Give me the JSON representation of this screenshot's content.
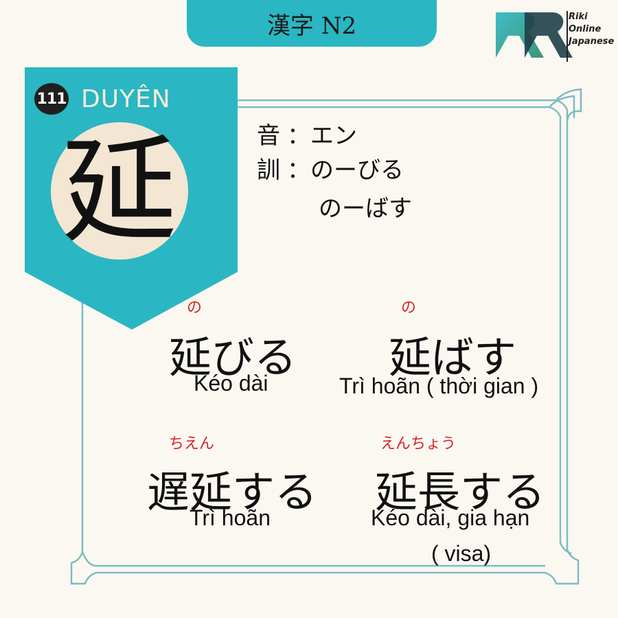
{
  "header": {
    "tab_label": "漢字 N2"
  },
  "logo": {
    "line1": "Riki",
    "line2": "Online",
    "line3": "Japanese",
    "icon": "riki-logo-icon"
  },
  "kanji_card": {
    "number": "111",
    "han_viet": "DUYÊN",
    "kanji": "延"
  },
  "readings": {
    "on_label": "音",
    "on_value": "：エン",
    "kun_label": "訓",
    "kun_value1": "：のーびる",
    "kun_value2": "のーばす"
  },
  "vocab": [
    {
      "furigana": "の",
      "word": "延びる",
      "meaning": "Kéo dài"
    },
    {
      "furigana": "の",
      "word": "延ばす",
      "meaning": "Trì hoãn ( thời gian )"
    },
    {
      "furigana": "ちえん",
      "word": "遅延する",
      "meaning": "Trì hoãn"
    },
    {
      "furigana": "えんちょう",
      "word": "延長する",
      "meaning": "Kéo dài, gia hạn",
      "meaning2": "( visa)"
    }
  ],
  "colors": {
    "teal": "#2ab6c2",
    "cream": "#fbf8f1",
    "circle": "#f3e6d3",
    "furigana_red": "#d2262b",
    "frame": "#7cbcc4"
  }
}
